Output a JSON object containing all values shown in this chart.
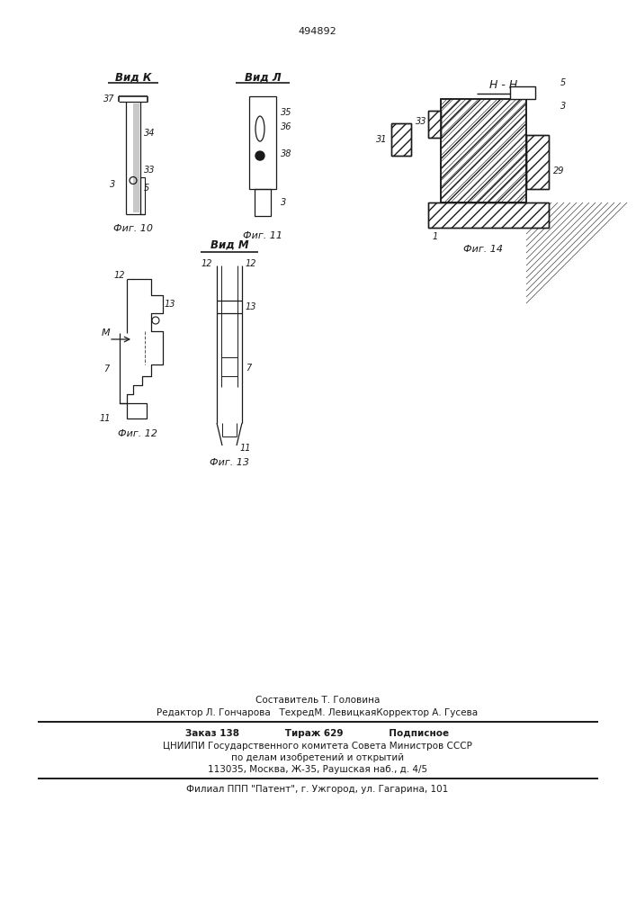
{
  "bg_color": "#ffffff",
  "line_color": "#1a1a1a",
  "title": "494892",
  "vid_k": "Вид К",
  "vid_l": "Вид Л",
  "vid_m": "Вид М",
  "hh": "Н - Н",
  "fig10": "Фиг. 10",
  "fig11": "Фиг. 11",
  "fig12": "Фиг. 12",
  "fig13": "Фиг. 13",
  "fig14": "Фиг. 14",
  "footer1": "Составитель Т. Головина",
  "footer2": "Редактор Л. Гончарова   ТехредМ. ЛевицкаяКорректор А. Гусева",
  "footer3": "Заказ 138              Тираж 629              Подписное",
  "footer4": "ЦНИИПИ Государственного комитета Совета Министров СССР",
  "footer5": "по делам изобретений и открытий",
  "footer6": "113035, Москва, Ж-35, Раушская наб., д. 4/5",
  "footer7": "Филиал ППП \"Патент\", г. Ужгород, ул. Гагарина, 101"
}
